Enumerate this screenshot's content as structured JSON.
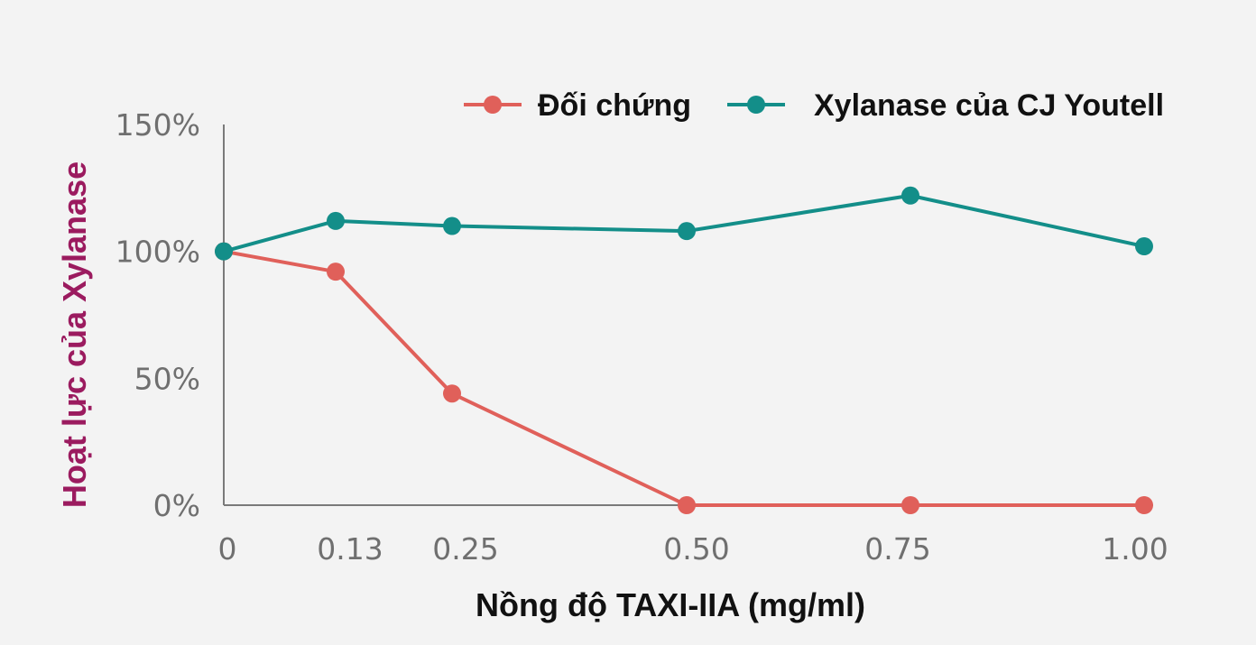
{
  "chart_data": {
    "type": "line",
    "title": "",
    "xlabel": "Nồng độ TAXI-IIA (mg/ml)",
    "ylabel": "Hoạt lực của Xylanase",
    "categories": [
      "0",
      "0.13",
      "0.25",
      "0.50",
      "0.75",
      "1.00"
    ],
    "x": [
      0,
      0.13,
      0.25,
      0.5,
      0.75,
      1.0
    ],
    "y_ticks": [
      "0%",
      "50%",
      "100%",
      "150%"
    ],
    "ylim": [
      0,
      150
    ],
    "grid": false,
    "legend_position": "top-right",
    "series": [
      {
        "name": "Đối chứng",
        "color": "#e0605a",
        "values": [
          100,
          92,
          44,
          0,
          0,
          0
        ]
      },
      {
        "name": "Xylanase của CJ Youtell",
        "color": "#138e89",
        "values": [
          100,
          112,
          110,
          108,
          122,
          102
        ]
      }
    ],
    "colors": {
      "ylabel": "#9b1b5f",
      "axis": "#7a7a7a",
      "ticks": "#6f6f6f"
    }
  }
}
